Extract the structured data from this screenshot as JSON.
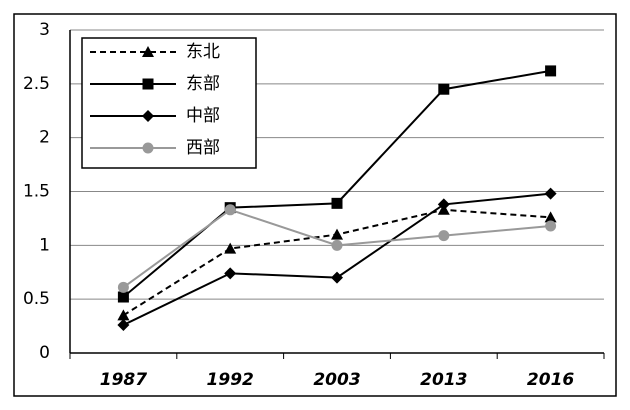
{
  "chart_data": {
    "type": "line",
    "categories": [
      "1987",
      "1992",
      "2003",
      "2013",
      "2016"
    ],
    "series": [
      {
        "name": "东北",
        "color": "#000000",
        "dashed": true,
        "marker": "triangle",
        "values": [
          0.35,
          0.97,
          1.1,
          1.33,
          1.26
        ]
      },
      {
        "name": "东部",
        "color": "#000000",
        "dashed": false,
        "marker": "square",
        "values": [
          0.52,
          1.35,
          1.39,
          2.45,
          2.62
        ]
      },
      {
        "name": "中部",
        "color": "#000000",
        "dashed": false,
        "marker": "diamond",
        "values": [
          0.26,
          0.74,
          0.7,
          1.38,
          1.48
        ]
      },
      {
        "name": "西部",
        "color": "#999999",
        "dashed": false,
        "marker": "circle",
        "values": [
          0.61,
          1.33,
          1.0,
          1.09,
          1.18
        ]
      }
    ],
    "ylim": [
      0,
      3
    ],
    "yticks": [
      0,
      0.5,
      1,
      1.5,
      2,
      2.5,
      3
    ],
    "grid": true,
    "legend": "top-left"
  }
}
